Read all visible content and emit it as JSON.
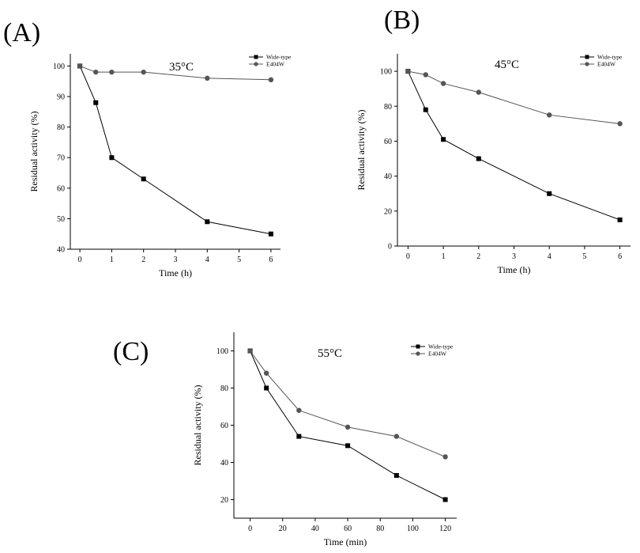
{
  "chart_data": [
    {
      "type": "line",
      "panel_label": "(A)",
      "annotation": "35°C",
      "xlabel": "Time (h)",
      "ylabel": "Residual activity (%)",
      "xlim": [
        -0.3,
        6.3
      ],
      "ylim": [
        40,
        104
      ],
      "xticks": [
        0,
        1,
        2,
        3,
        4,
        5,
        6
      ],
      "yticks": [
        40,
        50,
        60,
        70,
        80,
        90,
        100
      ],
      "legend_position": "top-right",
      "series": [
        {
          "name": "Wide-type",
          "marker": "square",
          "color": "#000000",
          "x": [
            0,
            0.5,
            1,
            2,
            4,
            6
          ],
          "values": [
            100,
            88,
            70,
            63,
            49,
            45
          ]
        },
        {
          "name": "E404W",
          "marker": "circle",
          "color": "#555555",
          "x": [
            0,
            0.5,
            1,
            2,
            4,
            6
          ],
          "values": [
            100,
            98,
            98,
            98,
            96,
            95.5
          ]
        }
      ]
    },
    {
      "type": "line",
      "panel_label": "(B)",
      "annotation": "45°C",
      "xlabel": "Time (h)",
      "ylabel": "Residual activity (%)",
      "xlim": [
        -0.3,
        6.3
      ],
      "ylim": [
        0,
        110
      ],
      "xticks": [
        0,
        1,
        2,
        3,
        4,
        5,
        6
      ],
      "yticks": [
        0,
        20,
        40,
        60,
        80,
        100
      ],
      "legend_position": "top-right",
      "series": [
        {
          "name": "Wide-type",
          "marker": "square",
          "color": "#000000",
          "x": [
            0,
            0.5,
            1,
            2,
            4,
            6
          ],
          "values": [
            100,
            78,
            61,
            50,
            30,
            15
          ]
        },
        {
          "name": "E404W",
          "marker": "circle",
          "color": "#555555",
          "x": [
            0,
            0.5,
            1,
            2,
            4,
            6
          ],
          "values": [
            100,
            98,
            93,
            88,
            75,
            70
          ]
        }
      ]
    },
    {
      "type": "line",
      "panel_label": "(C)",
      "annotation": "55°C",
      "xlabel": "Time (min)",
      "ylabel": "Residual activity (%)",
      "xlim": [
        -10,
        127
      ],
      "ylim": [
        10,
        110
      ],
      "xticks": [
        0,
        20,
        40,
        60,
        80,
        100,
        120
      ],
      "yticks": [
        20,
        40,
        60,
        80,
        100
      ],
      "legend_position": "top-right",
      "series": [
        {
          "name": "Wide-type",
          "marker": "square",
          "color": "#000000",
          "x": [
            0,
            10,
            30,
            60,
            90,
            120
          ],
          "values": [
            100,
            80,
            54,
            49,
            33,
            20
          ]
        },
        {
          "name": "E404W",
          "marker": "circle",
          "color": "#555555",
          "x": [
            0,
            10,
            30,
            60,
            90,
            120
          ],
          "values": [
            100,
            88,
            68,
            59,
            54,
            43
          ]
        }
      ]
    }
  ]
}
